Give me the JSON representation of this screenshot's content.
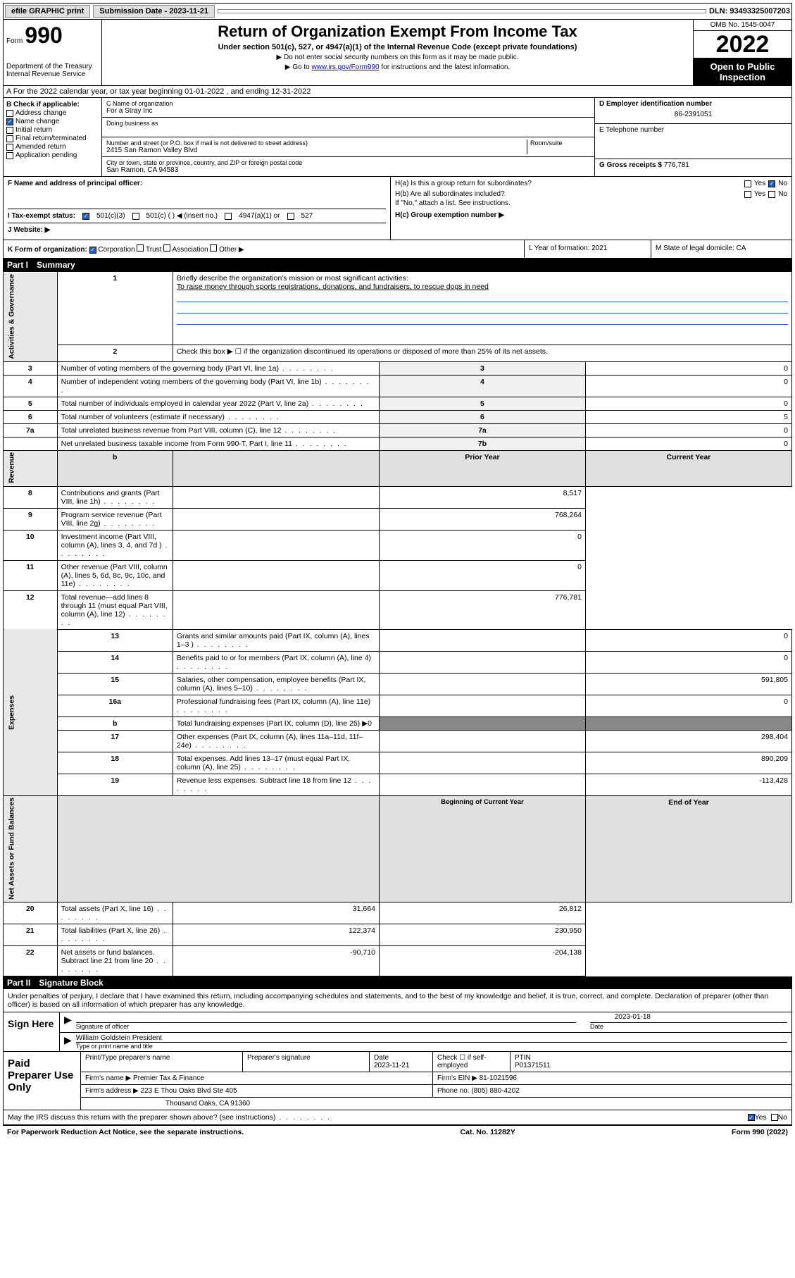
{
  "topbar": {
    "efile": "efile GRAPHIC print",
    "submission": "Submission Date - 2023-11-21",
    "dln": "DLN: 93493325007203"
  },
  "header": {
    "form_prefix": "Form",
    "form_number": "990",
    "dept": "Department of the Treasury",
    "irs": "Internal Revenue Service",
    "title": "Return of Organization Exempt From Income Tax",
    "subtitle": "Under section 501(c), 527, or 4947(a)(1) of the Internal Revenue Code (except private foundations)",
    "note1": "▶ Do not enter social security numbers on this form as it may be made public.",
    "note2_prefix": "▶ Go to ",
    "note2_link": "www.irs.gov/Form990",
    "note2_suffix": " for instructions and the latest information.",
    "omb": "OMB No. 1545-0047",
    "year": "2022",
    "inspection": "Open to Public Inspection"
  },
  "section_a": "A For the 2022 calendar year, or tax year beginning 01-01-2022    , and ending 12-31-2022",
  "col_b": {
    "label": "B Check if applicable:",
    "items": [
      "Address change",
      "Name change",
      "Initial return",
      "Final return/terminated",
      "Amended return",
      "Application pending"
    ],
    "checked_idx": 1
  },
  "col_c": {
    "name_label": "C Name of organization",
    "name": "For a Stray Inc",
    "dba_label": "Doing business as",
    "addr_label": "Number and street (or P.O. box if mail is not delivered to street address)",
    "room_label": "Room/suite",
    "addr": "2415 San Ramon Valley Blvd",
    "city_label": "City or town, state or province, country, and ZIP or foreign postal code",
    "city": "San Ramon, CA  94583"
  },
  "col_d": {
    "ein_label": "D Employer identification number",
    "ein": "86-2391051",
    "tel_label": "E Telephone number",
    "gross_label": "G Gross receipts $",
    "gross": "776,781"
  },
  "section_f": {
    "label": "F  Name and address of principal officer:"
  },
  "section_h": {
    "ha": "H(a)  Is this a group return for subordinates?",
    "hb": "H(b)  Are all subordinates included?",
    "hb_note": "If \"No,\" attach a list. See instructions.",
    "hc": "H(c)  Group exemption number ▶",
    "yes": "Yes",
    "no": "No"
  },
  "section_i": {
    "label": "I    Tax-exempt status:",
    "opts": [
      "501(c)(3)",
      "501(c) (  ) ◀ (insert no.)",
      "4947(a)(1) or",
      "527"
    ]
  },
  "section_j": {
    "label": "J   Website: ▶"
  },
  "section_k": {
    "label": "K Form of organization:",
    "opts": [
      "Corporation",
      "Trust",
      "Association",
      "Other ▶"
    ]
  },
  "section_l": {
    "label": "L Year of formation: 2021"
  },
  "section_m": {
    "label": "M State of legal domicile: CA"
  },
  "part1": {
    "label": "Part I",
    "title": "Summary"
  },
  "summary": {
    "q1": "Briefly describe the organization's mission or most significant activities:",
    "mission": "To raise money through sports registrations, donations, and fundraisers, to rescue dogs in need",
    "q2": "Check this box ▶ ☐  if the organization discontinued its operations or disposed of more than 25% of its net assets.",
    "rows_gov": [
      {
        "n": "3",
        "t": "Number of voting members of the governing body (Part VI, line 1a)",
        "r": "3",
        "v": "0"
      },
      {
        "n": "4",
        "t": "Number of independent voting members of the governing body (Part VI, line 1b)",
        "r": "4",
        "v": "0"
      },
      {
        "n": "5",
        "t": "Total number of individuals employed in calendar year 2022 (Part V, line 2a)",
        "r": "5",
        "v": "0"
      },
      {
        "n": "6",
        "t": "Total number of volunteers (estimate if necessary)",
        "r": "6",
        "v": "5"
      },
      {
        "n": "7a",
        "t": "Total unrelated business revenue from Part VIII, column (C), line 12",
        "r": "7a",
        "v": "0"
      },
      {
        "n": "",
        "t": "Net unrelated business taxable income from Form 990-T, Part I, line 11",
        "r": "7b",
        "v": "0"
      }
    ],
    "hdr_b": "b",
    "hdr_prior": "Prior Year",
    "hdr_current": "Current Year",
    "rows_rev": [
      {
        "n": "8",
        "t": "Contributions and grants (Part VIII, line 1h)",
        "p": "",
        "c": "8,517"
      },
      {
        "n": "9",
        "t": "Program service revenue (Part VIII, line 2g)",
        "p": "",
        "c": "768,264"
      },
      {
        "n": "10",
        "t": "Investment income (Part VIII, column (A), lines 3, 4, and 7d )",
        "p": "",
        "c": "0"
      },
      {
        "n": "11",
        "t": "Other revenue (Part VIII, column (A), lines 5, 6d, 8c, 9c, 10c, and 11e)",
        "p": "",
        "c": "0"
      },
      {
        "n": "12",
        "t": "Total revenue—add lines 8 through 11 (must equal Part VIII, column (A), line 12)",
        "p": "",
        "c": "776,781"
      }
    ],
    "rows_exp": [
      {
        "n": "13",
        "t": "Grants and similar amounts paid (Part IX, column (A), lines 1–3 )",
        "p": "",
        "c": "0"
      },
      {
        "n": "14",
        "t": "Benefits paid to or for members (Part IX, column (A), line 4)",
        "p": "",
        "c": "0"
      },
      {
        "n": "15",
        "t": "Salaries, other compensation, employee benefits (Part IX, column (A), lines 5–10)",
        "p": "",
        "c": "591,805"
      },
      {
        "n": "16a",
        "t": "Professional fundraising fees (Part IX, column (A), line 11e)",
        "p": "",
        "c": "0"
      },
      {
        "n": "b",
        "t": "Total fundraising expenses (Part IX, column (D), line 25) ▶0",
        "p": "-",
        "c": "-"
      },
      {
        "n": "17",
        "t": "Other expenses (Part IX, column (A), lines 11a–11d, 11f–24e)",
        "p": "",
        "c": "298,404"
      },
      {
        "n": "18",
        "t": "Total expenses. Add lines 13–17 (must equal Part IX, column (A), line 25)",
        "p": "",
        "c": "890,209"
      },
      {
        "n": "19",
        "t": "Revenue less expenses. Subtract line 18 from line 12",
        "p": "",
        "c": "-113,428"
      }
    ],
    "hdr_begin": "Beginning of Current Year",
    "hdr_end": "End of Year",
    "rows_net": [
      {
        "n": "20",
        "t": "Total assets (Part X, line 16)",
        "p": "31,664",
        "c": "26,812"
      },
      {
        "n": "21",
        "t": "Total liabilities (Part X, line 26)",
        "p": "122,374",
        "c": "230,950"
      },
      {
        "n": "22",
        "t": "Net assets or fund balances. Subtract line 21 from line 20",
        "p": "-90,710",
        "c": "-204,138"
      }
    ],
    "sides": [
      "Activities & Governance",
      "Revenue",
      "Expenses",
      "Net Assets or Fund Balances"
    ]
  },
  "part2": {
    "label": "Part II",
    "title": "Signature Block"
  },
  "sig": {
    "intro": "Under penalties of perjury, I declare that I have examined this return, including accompanying schedules and statements, and to the best of my knowledge and belief, it is true, correct, and complete. Declaration of preparer (other than officer) is based on all information of which preparer has any knowledge.",
    "sign_here": "Sign Here",
    "sig_officer": "Signature of officer",
    "date": "Date",
    "date_val": "2023-01-18",
    "name": "William Goldstein  President",
    "name_label": "Type or print name and title"
  },
  "prep": {
    "label": "Paid Preparer Use Only",
    "r1": {
      "c1": "Print/Type preparer's name",
      "c2": "Preparer's signature",
      "c3": "Date",
      "c3v": "2023-11-21",
      "c4": "Check ☐ if self-employed",
      "c5": "PTIN",
      "c5v": "P01371511"
    },
    "r2": {
      "c1": "Firm's name    ▶",
      "c1v": "Premier Tax & Finance",
      "c2": "Firm's EIN ▶",
      "c2v": "81-1021596"
    },
    "r3": {
      "c1": "Firm's address ▶",
      "c1v": "223 E Thou Oaks Blvd Ste 405",
      "c2": "Phone no.",
      "c2v": "(805) 880-4202"
    },
    "r4": {
      "c1": "Thousand Oaks, CA  91360"
    }
  },
  "discuss": {
    "t": "May the IRS discuss this return with the preparer shown above? (see instructions)",
    "yes": "Yes",
    "no": "No"
  },
  "footer": {
    "l": "For Paperwork Reduction Act Notice, see the separate instructions.",
    "m": "Cat. No. 11282Y",
    "r": "Form 990 (2022)"
  }
}
